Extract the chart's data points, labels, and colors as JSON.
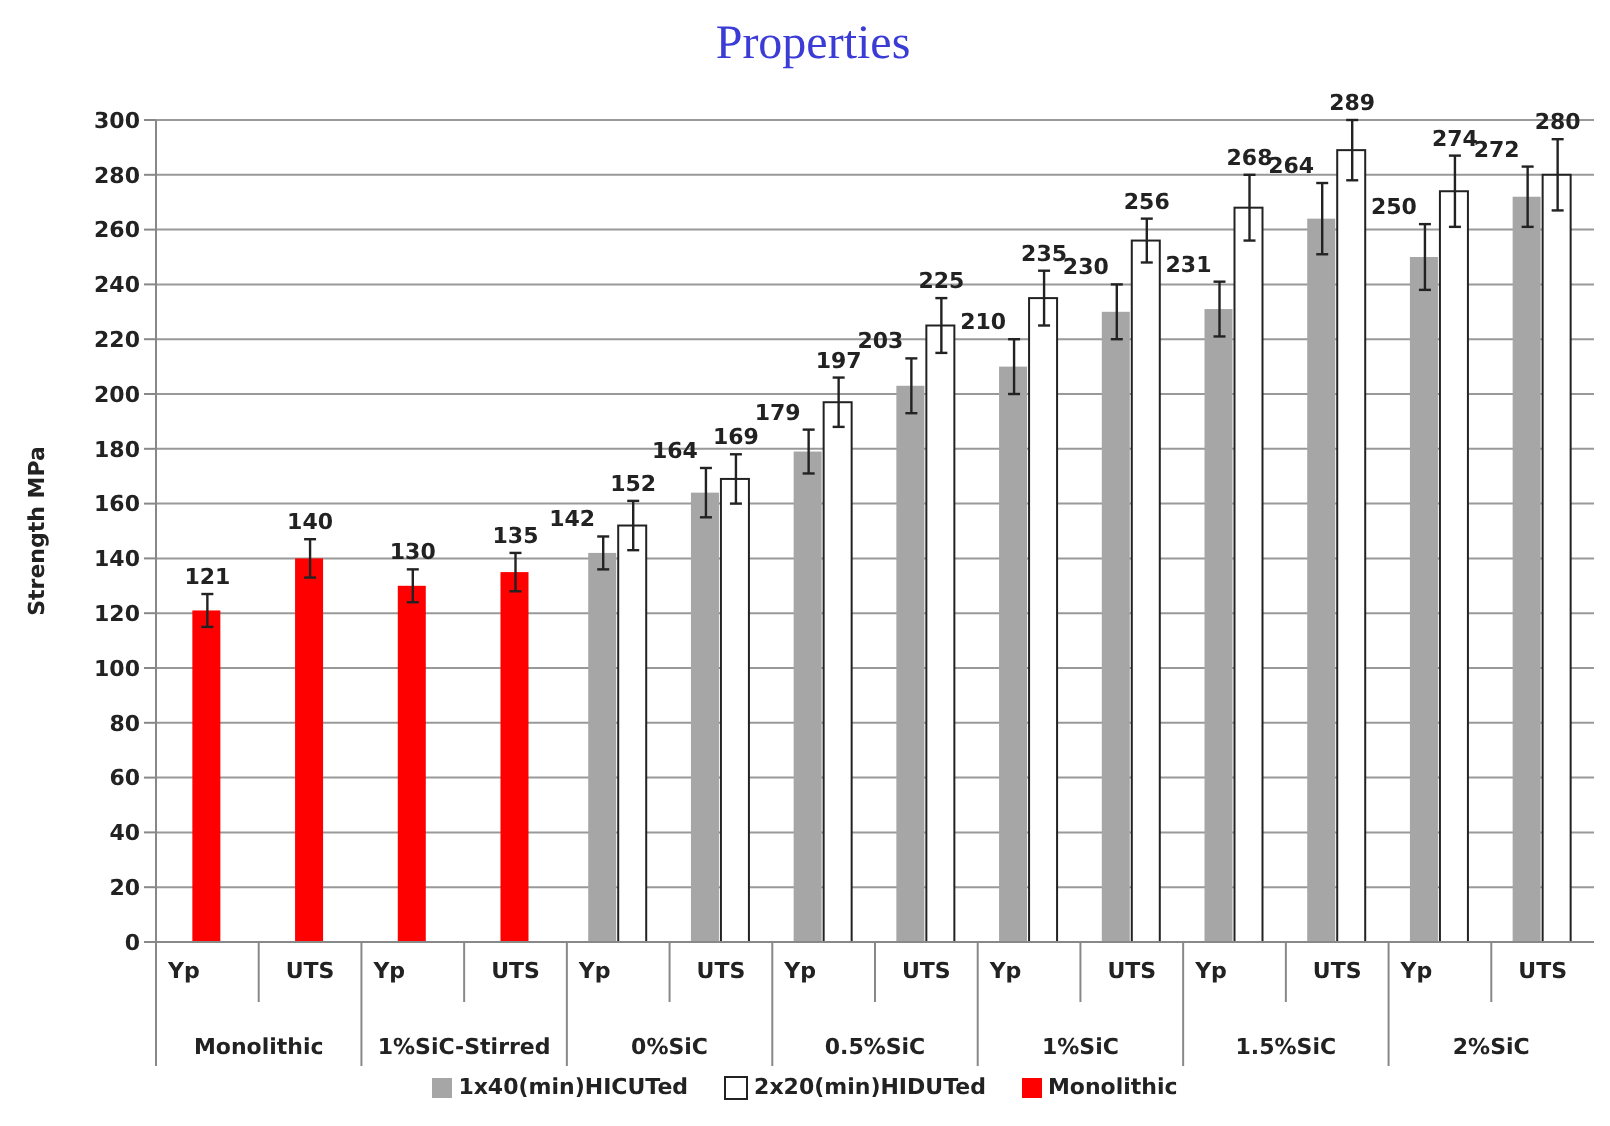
{
  "chart_data": {
    "type": "bar",
    "title": "Properties",
    "ylabel": "Strength MPa",
    "categories": [
      "Yp",
      "UTS",
      "Yp",
      "UTS",
      "Yp",
      "UTS",
      "Yp",
      "UTS",
      "Yp",
      "UTS",
      "Yp",
      "UTS",
      "Yp",
      "UTS"
    ],
    "annotations": [
      "Monolithic",
      "1%SiC-Stirred",
      "0%SiC",
      "0.5%SiC",
      "1%SiC",
      "1.5%SiC",
      "2%SiC"
    ],
    "series": [
      {
        "name": "1x40(min)HICUTed",
        "color": "#a6a6a6",
        "values": [
          null,
          null,
          null,
          null,
          142,
          164,
          179,
          203,
          210,
          230,
          231,
          264,
          250,
          272
        ],
        "errors": [
          null,
          null,
          null,
          null,
          6,
          9,
          8,
          10,
          10,
          10,
          10,
          13,
          12,
          11
        ]
      },
      {
        "name": "2x20(min)HIDUTed",
        "color": "#ffffff",
        "values": [
          null,
          null,
          null,
          null,
          152,
          169,
          197,
          225,
          235,
          256,
          268,
          289,
          274,
          280
        ],
        "errors": [
          null,
          null,
          null,
          null,
          9,
          9,
          9,
          10,
          10,
          8,
          12,
          11,
          13,
          13
        ]
      },
      {
        "name": "Monolithic",
        "color": "#ff0000",
        "values": [
          121,
          140,
          130,
          135,
          null,
          null,
          null,
          null,
          null,
          null,
          null,
          null,
          null,
          null
        ],
        "errors": [
          6,
          7,
          6,
          7,
          null,
          null,
          null,
          null,
          null,
          null,
          null,
          null,
          null,
          null
        ]
      }
    ],
    "ylim": [
      0,
      300
    ],
    "yticks": [
      0,
      20,
      40,
      60,
      80,
      100,
      120,
      140,
      160,
      180,
      200,
      220,
      240,
      260,
      280,
      300
    ],
    "grid": "y",
    "legend": "bottom",
    "data_labels": true
  }
}
